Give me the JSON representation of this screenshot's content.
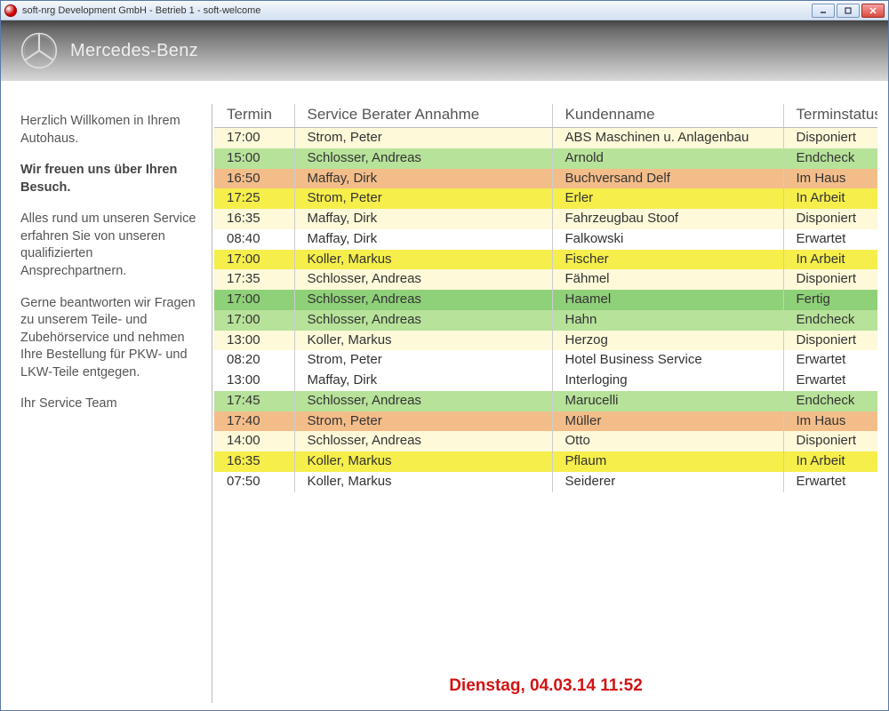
{
  "window": {
    "title": "soft-nrg Development GmbH - Betrieb 1 - soft-welcome"
  },
  "brand": {
    "name": "Mercedes-Benz"
  },
  "sidebar": {
    "p1": "Herzlich Willkomen in Ihrem Autohaus.",
    "p2": "Wir freuen uns über Ihren Besuch.",
    "p3": "Alles rund um unseren Service erfahren Sie von unseren qualifizierten Ansprechpartnern.",
    "p4": "Gerne beantworten wir Fragen zu unserem Teile- und Zubehörservice und nehmen Ihre Bestellung für PKW- und LKW-Teile entgegen.",
    "p5": "Ihr Service Team"
  },
  "table": {
    "columns": [
      "Termin",
      "Service Berater Annahme",
      "Kundenname",
      "Terminstatus"
    ],
    "status_colors": {
      "Disponiert": "#fdf9d9",
      "Endcheck": "#b7e29a",
      "Im Haus": "#f3bd8a",
      "In Arbeit": "#f6ee4b",
      "Erwartet": "#ffffff",
      "Fertig": "#8fd179"
    },
    "rows": [
      {
        "termin": "17:00",
        "berater": "Strom, Peter",
        "kunde": "ABS Maschinen u. Anlagenbau",
        "status": "Disponiert"
      },
      {
        "termin": "15:00",
        "berater": "Schlosser, Andreas",
        "kunde": "Arnold",
        "status": "Endcheck"
      },
      {
        "termin": "16:50",
        "berater": "Maffay, Dirk",
        "kunde": "Buchversand Delf",
        "status": "Im Haus"
      },
      {
        "termin": "17:25",
        "berater": "Strom, Peter",
        "kunde": "Erler",
        "status": "In Arbeit"
      },
      {
        "termin": "16:35",
        "berater": "Maffay, Dirk",
        "kunde": "Fahrzeugbau Stoof",
        "status": "Disponiert"
      },
      {
        "termin": "08:40",
        "berater": "Maffay, Dirk",
        "kunde": "Falkowski",
        "status": "Erwartet"
      },
      {
        "termin": "17:00",
        "berater": "Koller, Markus",
        "kunde": "Fischer",
        "status": "In Arbeit"
      },
      {
        "termin": "17:35",
        "berater": "Schlosser, Andreas",
        "kunde": "Fähmel",
        "status": "Disponiert"
      },
      {
        "termin": "17:00",
        "berater": "Schlosser, Andreas",
        "kunde": "Haamel",
        "status": "Fertig"
      },
      {
        "termin": "17:00",
        "berater": "Schlosser, Andreas",
        "kunde": "Hahn",
        "status": "Endcheck"
      },
      {
        "termin": "13:00",
        "berater": "Koller, Markus",
        "kunde": "Herzog",
        "status": "Disponiert"
      },
      {
        "termin": "08:20",
        "berater": "Strom, Peter",
        "kunde": "Hotel Business Service",
        "status": "Erwartet"
      },
      {
        "termin": "13:00",
        "berater": "Maffay, Dirk",
        "kunde": "Interloging",
        "status": "Erwartet"
      },
      {
        "termin": "17:45",
        "berater": "Schlosser, Andreas",
        "kunde": "Marucelli",
        "status": "Endcheck"
      },
      {
        "termin": "17:40",
        "berater": "Strom, Peter",
        "kunde": "Müller",
        "status": "Im Haus"
      },
      {
        "termin": "14:00",
        "berater": "Schlosser, Andreas",
        "kunde": "Otto",
        "status": "Disponiert"
      },
      {
        "termin": "16:35",
        "berater": "Koller, Markus",
        "kunde": "Pflaum",
        "status": "In Arbeit"
      },
      {
        "termin": "07:50",
        "berater": "Koller, Markus",
        "kunde": "Seiderer",
        "status": "Erwartet"
      }
    ]
  },
  "footer": {
    "datetime": "Dienstag, 04.03.14 11:52",
    "color": "#d11313"
  }
}
